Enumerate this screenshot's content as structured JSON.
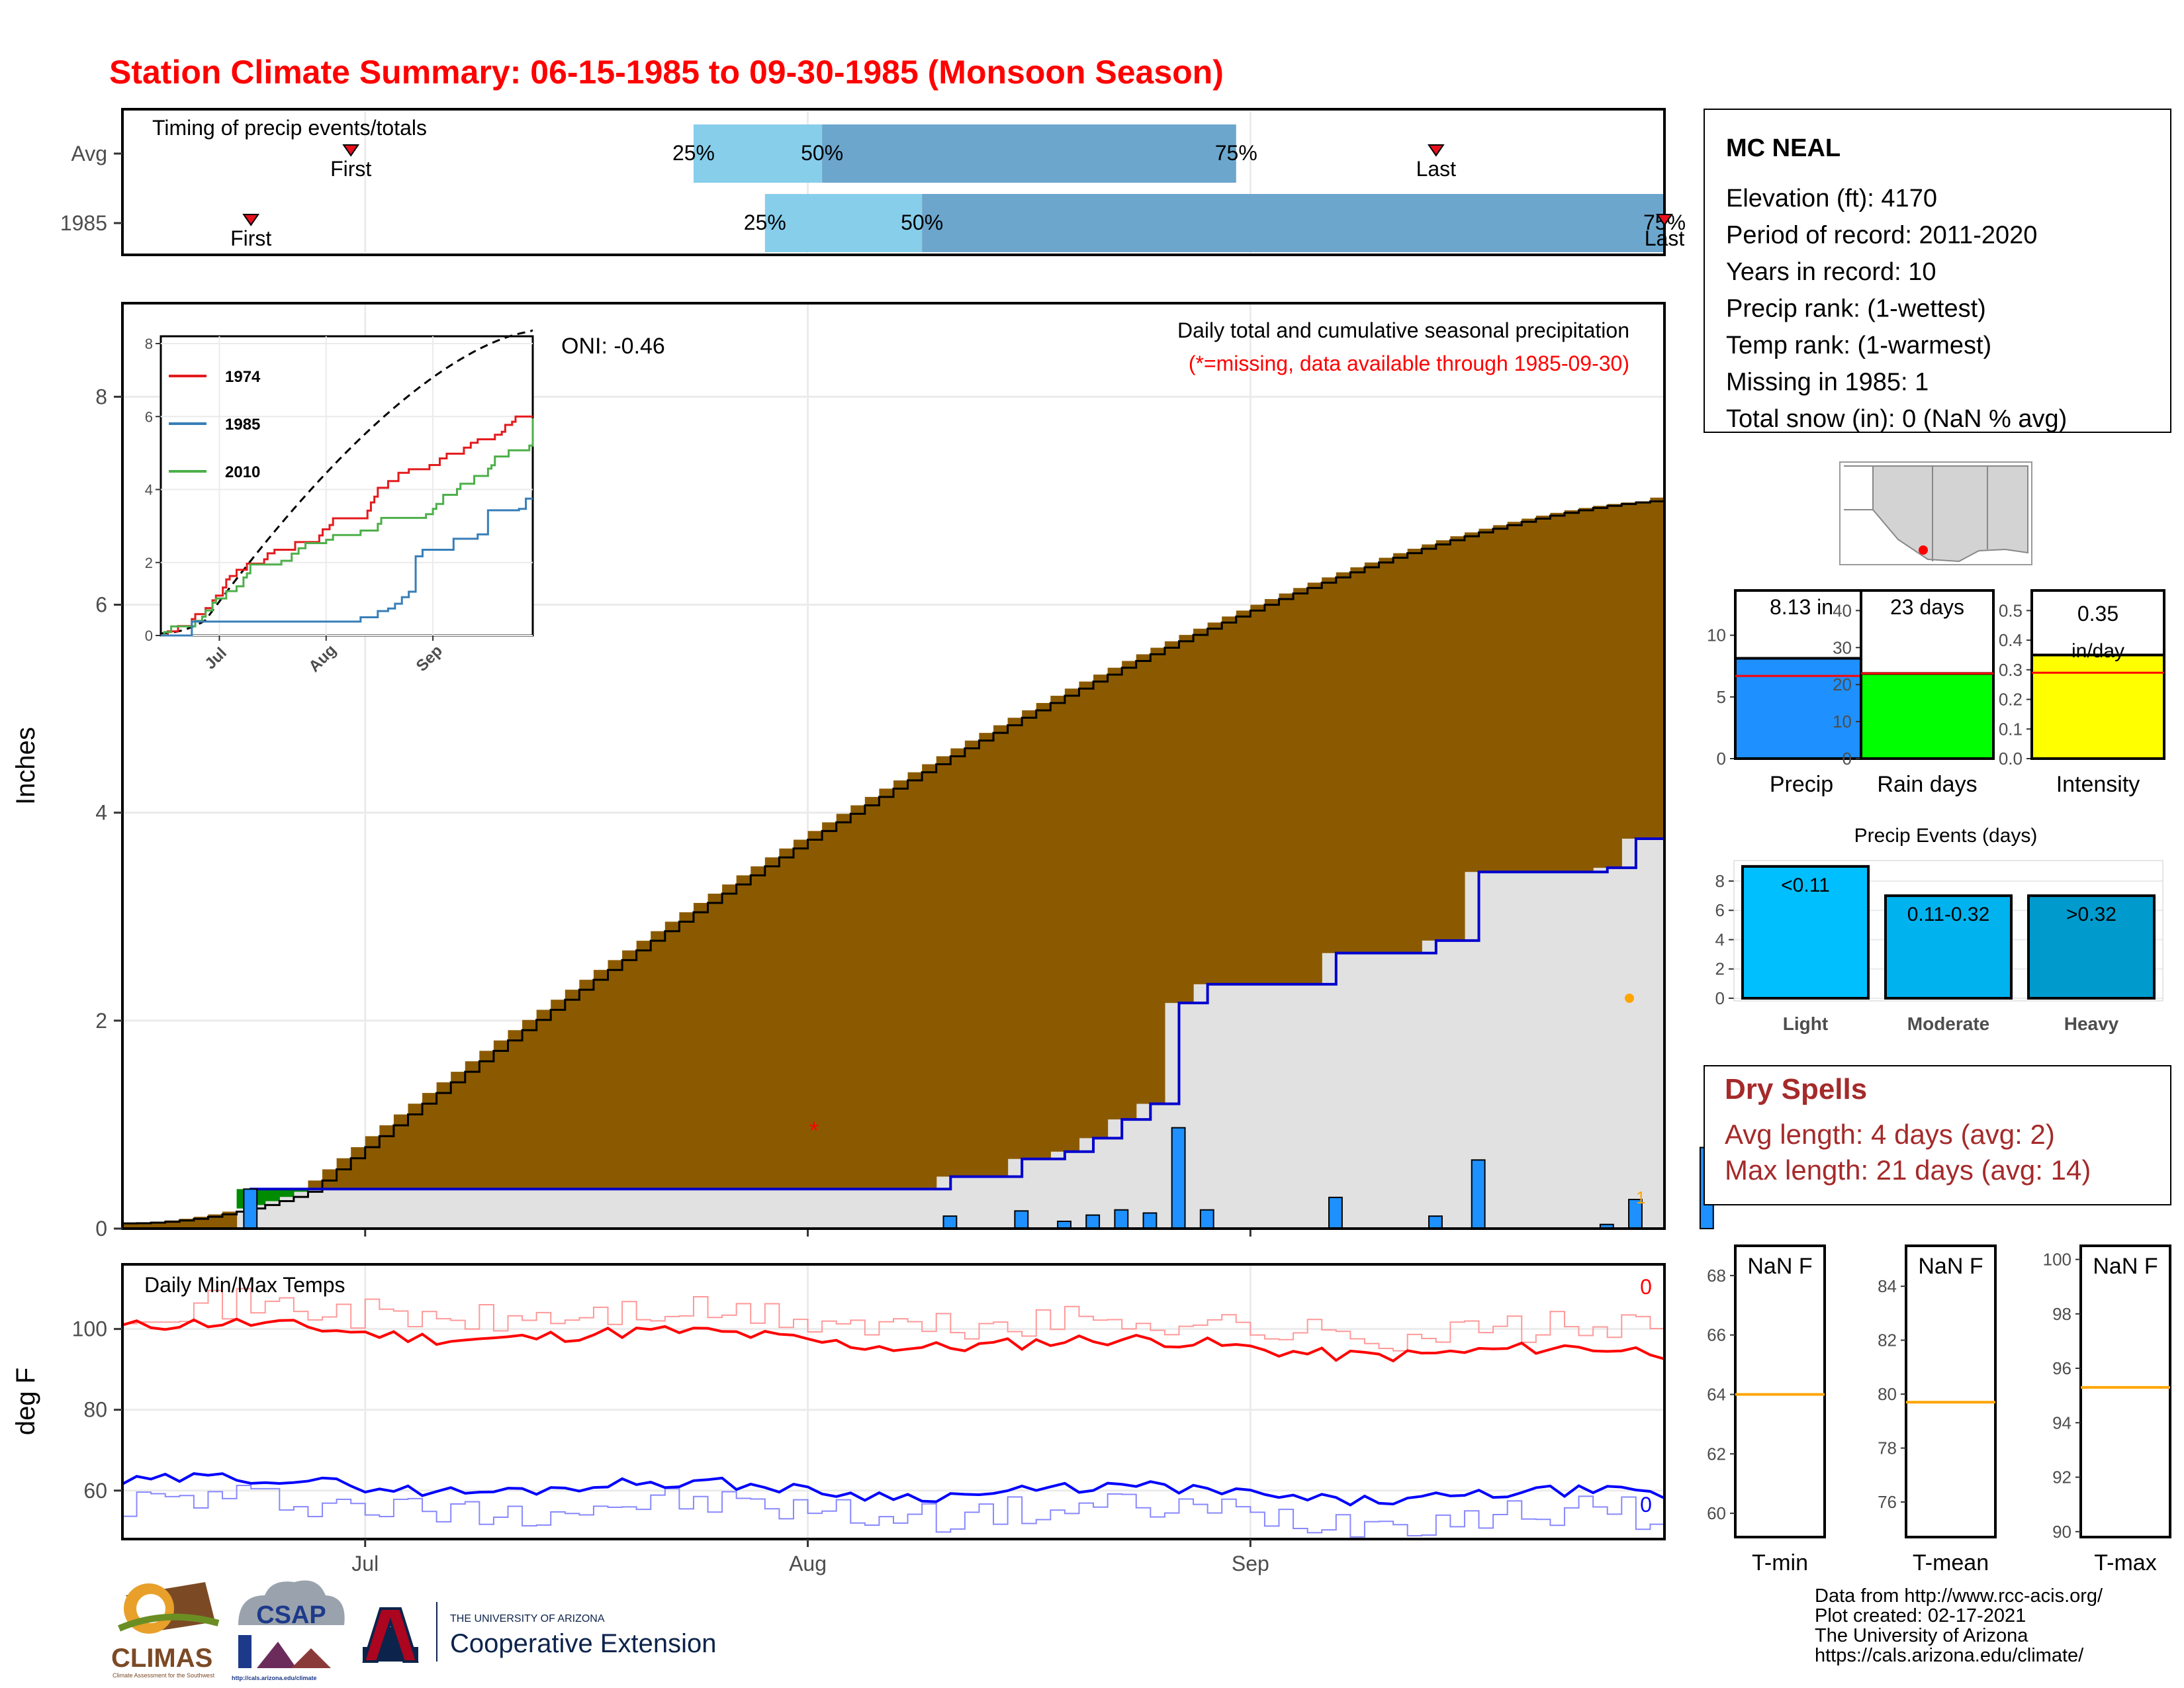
{
  "title": "Station Climate Summary: 06-15-1985 to 09-30-1985 (Monsoon Season)",
  "timing": {
    "label": "Timing of precip events/totals",
    "rows": [
      {
        "name": "Avg",
        "first": "06-30",
        "p25": "07-24",
        "p50": "08-02",
        "p75": "08-31",
        "last": "09-14"
      },
      {
        "name": "1985",
        "first": "06-23",
        "p25": "07-29",
        "p50": "08-09",
        "p75": "09-30",
        "last": "09-30"
      }
    ],
    "first_label": "First",
    "last_label": "Last",
    "pct_labels": [
      "25%",
      "50%",
      "75%"
    ],
    "colors": {
      "light": "#87ceeb",
      "dark": "#6ca6cd",
      "marker": "#e8101e"
    }
  },
  "main_chart": {
    "ylabel": "Inches",
    "oni_label": "ONI: -0.46",
    "desc": "Daily total and cumulative seasonal precipitation",
    "desc_red": "(*=missing, data available through 1985-09-30)",
    "yticks": [
      "0",
      "2",
      "4",
      "6",
      "8"
    ],
    "colors": {
      "fill_bg": "#e1e1e1",
      "brown": "#8b5a00",
      "green": "#008b00",
      "line_blue": "#0000cd",
      "bar": "#1e90ff",
      "missing": "#ff0000"
    }
  },
  "inset": {
    "legend": [
      "1974",
      "1985",
      "2010"
    ],
    "legend_colors": [
      "#e41a1c",
      "#377eb8",
      "#4daf4a"
    ],
    "yticks": [
      "0",
      "2",
      "4",
      "6",
      "8"
    ],
    "xticks": [
      "Jul",
      "Aug",
      "Sep"
    ]
  },
  "temps": {
    "label": "Daily Min/Max Temps",
    "ylabel": "deg F",
    "yticks": [
      "60",
      "80",
      "100"
    ],
    "missing_max": "0",
    "missing_min": "0"
  },
  "xaxis": {
    "ticks": [
      "Jul",
      "Aug",
      "Sep"
    ]
  },
  "station": {
    "name": "MC NEAL",
    "lines": [
      "Elevation (ft): 4170",
      "Period of record: 2011-2020",
      "Years in record: 10",
      "Precip rank:  (1-wettest)",
      "Temp rank:  (1-warmest)",
      "Missing in 1985: 1",
      "Total snow (in): 0 (NaN % avg)"
    ]
  },
  "mini_bars": [
    {
      "label": "Precip",
      "text1": "8.13 in",
      "text2": "",
      "value": 8.13,
      "avg": 6.7,
      "ymax": 13.2,
      "ticks": [
        "0",
        "5",
        "10"
      ],
      "tick_vals": [
        0,
        5,
        10
      ],
      "color": "#1e90ff"
    },
    {
      "label": "Rain days",
      "text1": "23 days",
      "text2": "",
      "value": 23,
      "avg": 23,
      "ymax": 44,
      "ticks": [
        "0",
        "10",
        "20",
        "30",
        "40"
      ],
      "tick_vals": [
        0,
        10,
        20,
        30,
        40
      ],
      "color": "#00ff00"
    },
    {
      "label": "Intensity",
      "text1": "0.35",
      "text2": "in/day",
      "value": 0.35,
      "avg": 0.29,
      "ymax": 0.55,
      "ticks": [
        "0.0",
        "0.1",
        "0.2",
        "0.3",
        "0.4",
        "0.5"
      ],
      "tick_vals": [
        0,
        0.1,
        0.2,
        0.3,
        0.4,
        0.5
      ],
      "color": "#ffff00"
    }
  ],
  "chart_data": {
    "type": "bar",
    "title": "Precip Events (days)",
    "categories": [
      "Light",
      "Moderate",
      "Heavy"
    ],
    "values": [
      9,
      7,
      7
    ],
    "bar_labels": [
      "<0.11",
      "0.11-0.32",
      ">0.32"
    ],
    "ylim": [
      0,
      9.4
    ],
    "yticks": [
      "0",
      "2",
      "4",
      "6",
      "8"
    ],
    "colors": [
      "#00bfff",
      "#00b2ee",
      "#009acd"
    ]
  },
  "dry_spells": {
    "title": "Dry Spells",
    "avg": "Avg length: 4 days (avg: 2)",
    "max": "Max length: 21 days (avg: 14)",
    "color": "#a52a2a"
  },
  "temp_boxes": [
    {
      "label": "T-min",
      "text": "NaN F",
      "ticks": [
        "60",
        "62",
        "64",
        "66",
        "68"
      ],
      "tick_vals": [
        60,
        62,
        64,
        66,
        68
      ],
      "ylim": [
        59.2,
        69.0
      ],
      "avg": 64.0
    },
    {
      "label": "T-mean",
      "text": "NaN F",
      "ticks": [
        "76",
        "78",
        "80",
        "82",
        "84"
      ],
      "tick_vals": [
        76,
        78,
        80,
        82,
        84
      ],
      "ylim": [
        74.7,
        85.5
      ],
      "avg": 79.7
    },
    {
      "label": "T-max",
      "text": "NaN F",
      "ticks": [
        "90",
        "92",
        "94",
        "96",
        "98",
        "100"
      ],
      "tick_vals": [
        90,
        92,
        94,
        96,
        98,
        100
      ],
      "ylim": [
        89.8,
        100.5
      ],
      "avg": 95.3
    }
  ],
  "footer": {
    "lines": [
      "Data from http://www.rcc-acis.org/",
      "Plot created: 02-17-2021",
      "The University of Arizona",
      "https://cals.arizona.edu/climate/"
    ],
    "logos": {
      "climas": "CLIMAS",
      "climas_sub": "Climate Assessment for the Southwest",
      "csap": "CSAP",
      "csap_url": "http://cals.arizona.edu/climate",
      "ua_small": "THE UNIVERSITY OF ARIZONA",
      "ua_big": "Cooperative Extension"
    }
  }
}
